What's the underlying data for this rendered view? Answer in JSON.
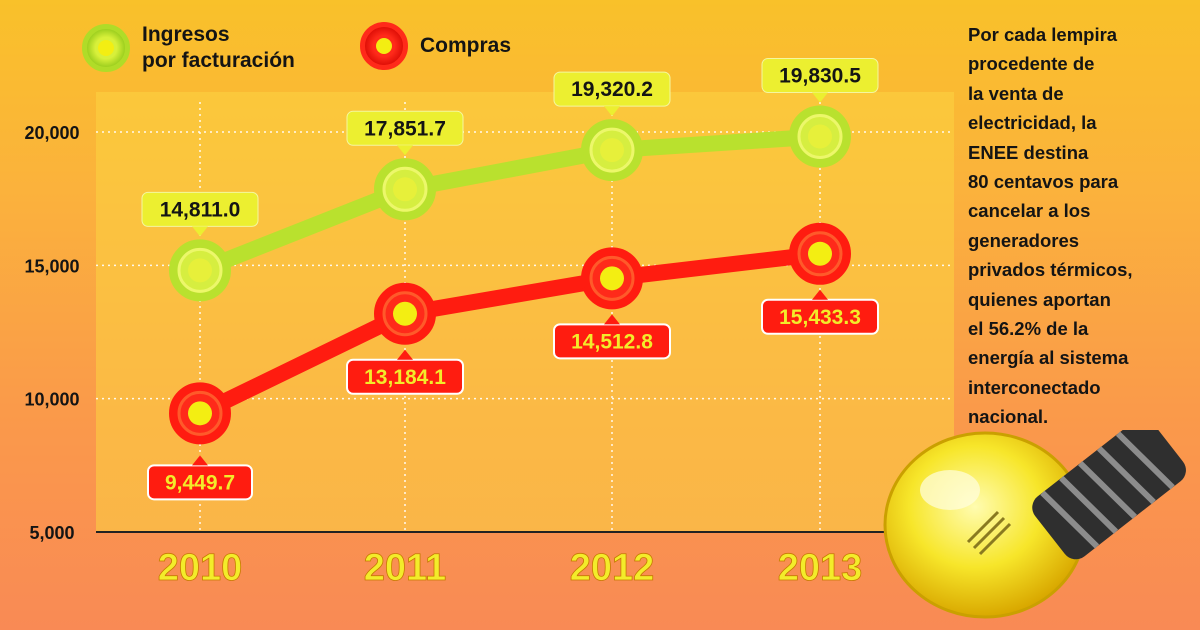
{
  "chart_data": {
    "type": "line",
    "categories": [
      "2010",
      "2011",
      "2012",
      "2013"
    ],
    "series": [
      {
        "name": "Ingresos por facturación",
        "values": [
          14811.0,
          17851.7,
          19320.2,
          19830.5
        ],
        "labels": [
          "14,811.0",
          "17,851.7",
          "19,320.2",
          "19,830.5"
        ],
        "color": "#b6e12a"
      },
      {
        "name": "Compras",
        "values": [
          9449.7,
          13184.1,
          14512.8,
          15433.3
        ],
        "labels": [
          "9,449.7",
          "13,184.1",
          "14,512.8",
          "15,433.3"
        ],
        "color": "#ff1c10"
      }
    ],
    "y_ticks": [
      "20,000",
      "15,000",
      "10,000",
      "5,000"
    ],
    "y_tick_values": [
      20000,
      15000,
      10000,
      5000
    ],
    "ylim": [
      5000,
      21500
    ],
    "grid": "dotted horizontal and vertical",
    "legend_position": "top-left",
    "title": "",
    "xlabel": "",
    "ylabel": ""
  },
  "legend": {
    "income_line1": "Ingresos",
    "income_line2": "por facturación",
    "purchases": "Compras"
  },
  "side_text": "Por cada lempira\nprocedente de\nla venta de\nelectricidad, la\nENEE destina\n80 centavos para\ncancelar a los\ngeneradores\nprivados térmicos,\nquienes aportan\nel 56.2% de la\nenergía al sistema\ninterconectado\nnacional.",
  "colors": {
    "axis_year": "#f3ec2a",
    "tick_text": "#141414",
    "green_fill": "#b6e12a",
    "red_fill": "#ff1c10",
    "label_red_text": "#f3ec2a",
    "label_green_text": "#141414"
  },
  "decoration": {
    "bulb": "lightbulb-icon"
  }
}
